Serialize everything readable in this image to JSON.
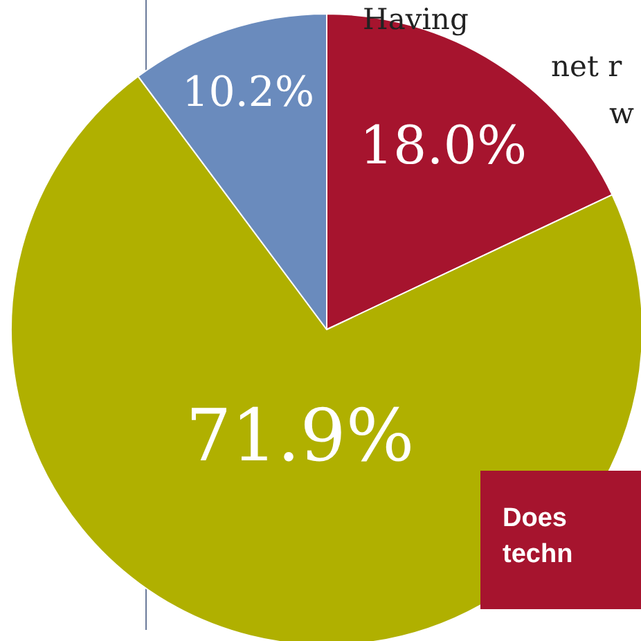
{
  "chart_data": {
    "type": "pie",
    "categories": [
      null,
      null,
      null
    ],
    "values": [
      18.0,
      71.9,
      10.2
    ],
    "colors": [
      "#a6142e",
      "#b0b000",
      "#6a8bbd"
    ],
    "value_labels": [
      "18.0%",
      "71.9%",
      "10.2%"
    ],
    "annotations": [
      "Having",
      "net r",
      "w",
      "Does\ntechn"
    ]
  }
}
